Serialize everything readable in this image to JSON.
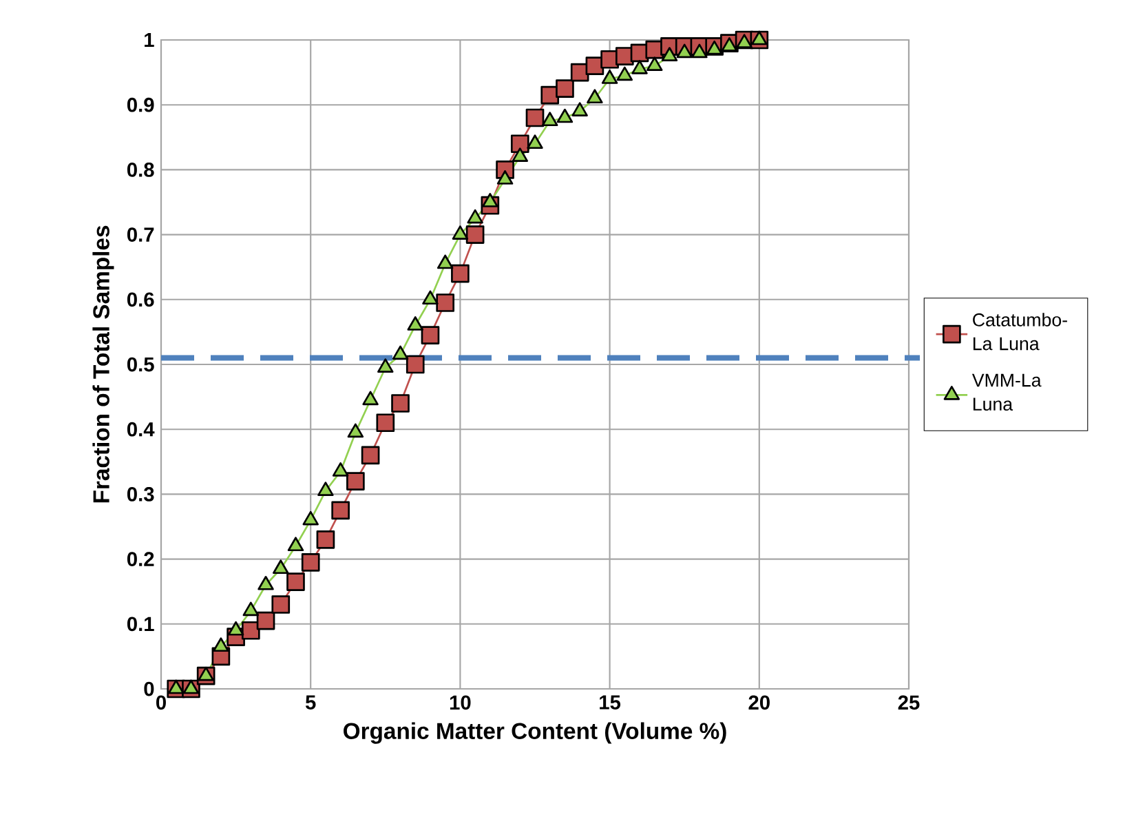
{
  "chart_data": {
    "type": "line",
    "xlabel": "Organic Matter Content (Volume %)",
    "ylabel": "Fraction of Total  Samples",
    "xlim": [
      0,
      25
    ],
    "ylim": [
      0,
      1
    ],
    "xticks": [
      0,
      5,
      10,
      15,
      20,
      25
    ],
    "yticks": [
      0,
      0.1,
      0.2,
      0.3,
      0.4,
      0.5,
      0.6,
      0.7,
      0.8,
      0.9,
      1
    ],
    "grid": true,
    "legend": "right",
    "line_style": "solid",
    "series": [
      {
        "name": "Catatumbo-La Luna",
        "color": "#c0504d",
        "marker": "square",
        "x": [
          0.5,
          1,
          1.5,
          2,
          2.5,
          3,
          3.5,
          4,
          4.5,
          5,
          5.5,
          6,
          6.5,
          7,
          7.5,
          8,
          8.5,
          9,
          9.5,
          10,
          10.5,
          11,
          11.5,
          12,
          12.5,
          13,
          13.5,
          14,
          14.5,
          15,
          15.5,
          16,
          16.5,
          17,
          17.5,
          18,
          18.5,
          19,
          19.5,
          20
        ],
        "values": [
          0,
          0,
          0.02,
          0.05,
          0.08,
          0.09,
          0.105,
          0.13,
          0.165,
          0.195,
          0.23,
          0.275,
          0.32,
          0.36,
          0.41,
          0.44,
          0.5,
          0.545,
          0.595,
          0.64,
          0.7,
          0.745,
          0.8,
          0.84,
          0.88,
          0.915,
          0.925,
          0.95,
          0.96,
          0.97,
          0.975,
          0.98,
          0.985,
          0.99,
          0.99,
          0.99,
          0.99,
          0.995,
          1,
          1
        ]
      },
      {
        "name": "VMM-La Luna",
        "color": "#92d050",
        "marker": "triangle",
        "x": [
          0.5,
          1,
          1.5,
          2,
          2.5,
          3,
          3.5,
          4,
          4.5,
          5,
          5.5,
          6,
          6.5,
          7,
          7.5,
          8,
          8.5,
          9,
          9.5,
          10,
          10.5,
          11,
          11.5,
          12,
          12.5,
          13,
          13.5,
          14,
          14.5,
          15,
          15.5,
          16,
          16.5,
          17,
          17.5,
          18,
          18.5,
          19,
          19.5,
          20
        ],
        "values": [
          0,
          0,
          0.02,
          0.065,
          0.09,
          0.12,
          0.16,
          0.185,
          0.22,
          0.26,
          0.305,
          0.335,
          0.395,
          0.445,
          0.495,
          0.515,
          0.56,
          0.6,
          0.655,
          0.7,
          0.725,
          0.75,
          0.785,
          0.82,
          0.84,
          0.875,
          0.88,
          0.89,
          0.91,
          0.94,
          0.945,
          0.955,
          0.96,
          0.975,
          0.98,
          0.98,
          0.985,
          0.99,
          0.995,
          1
        ]
      }
    ],
    "ref_lines": [
      {
        "axis": "y",
        "value": 0.51,
        "color": "#4f81bd",
        "line_style": "dashed"
      }
    ]
  }
}
